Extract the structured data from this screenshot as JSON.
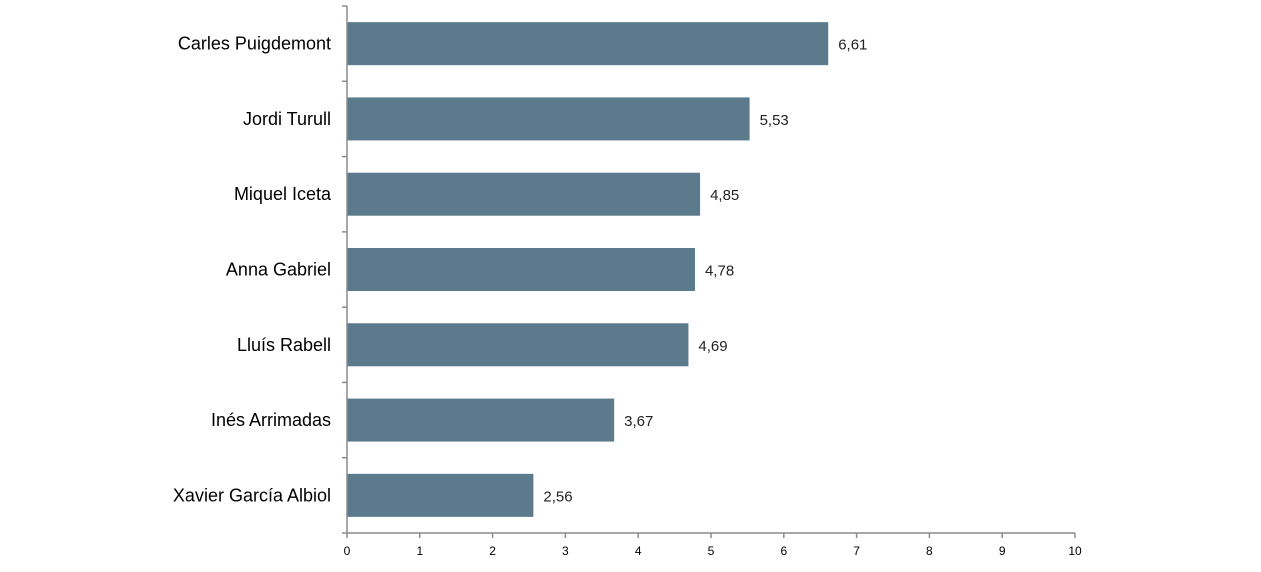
{
  "chart_data": {
    "type": "bar",
    "orientation": "horizontal",
    "categories": [
      "Carles Puigdemont",
      "Jordi Turull",
      "Miquel Iceta",
      "Anna Gabriel",
      "Lluís Rabell",
      "Inés Arrimadas",
      "Xavier García Albiol"
    ],
    "values": [
      6.61,
      5.53,
      4.85,
      4.78,
      4.69,
      3.67,
      2.56
    ],
    "data_labels": [
      "6,61",
      "5,53",
      "4,85",
      "4,78",
      "4,69",
      "3,67",
      "2,56"
    ],
    "xticks": [
      "0",
      "1",
      "2",
      "3",
      "4",
      "5",
      "6",
      "7",
      "8",
      "9",
      "10"
    ],
    "xlim": [
      0,
      10
    ],
    "title": "",
    "xlabel": "",
    "ylabel": "",
    "grid": false,
    "legend": "none",
    "bar_color": "#5b7b8c"
  }
}
